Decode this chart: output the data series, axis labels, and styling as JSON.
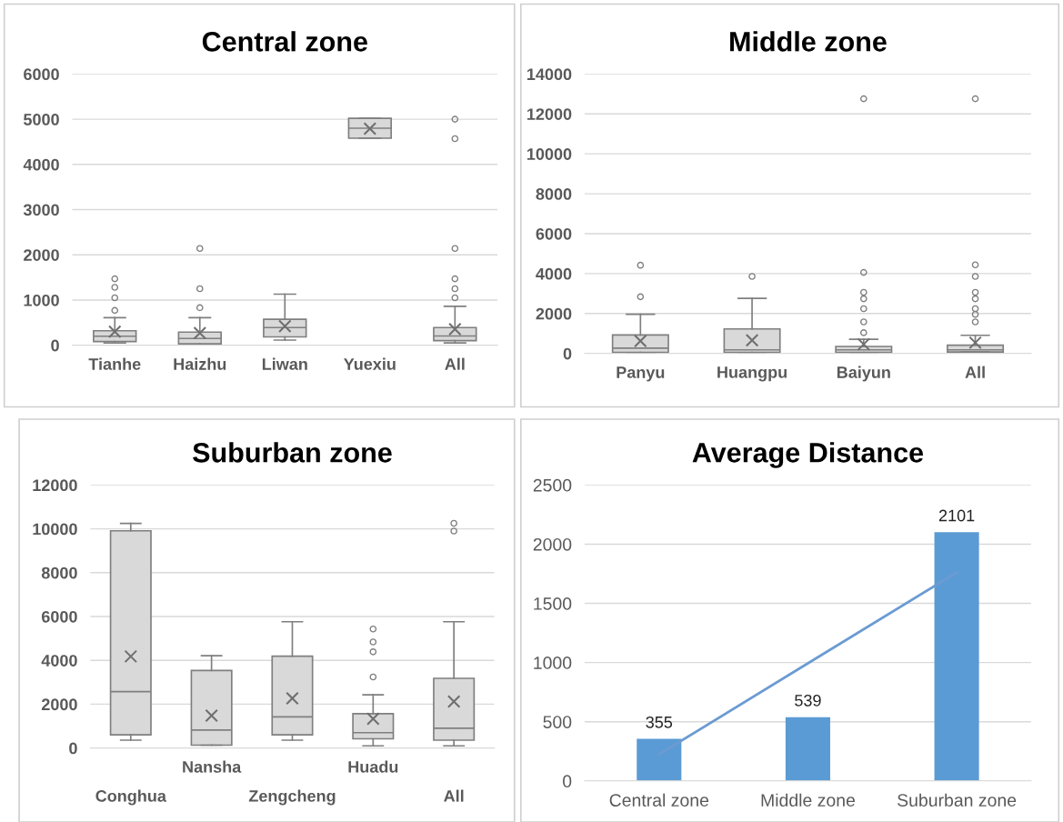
{
  "chart_data": [
    {
      "type": "box",
      "title": "Central zone",
      "categories": [
        "Tianhe",
        "Haizhu",
        "Liwan",
        "Yuexiu",
        "All"
      ],
      "ylim": [
        0,
        6000
      ],
      "yticks": [
        0,
        1000,
        2000,
        3000,
        4000,
        5000,
        6000
      ],
      "grid": "y",
      "series": [
        {
          "color": "#d9d9d9",
          "boxes": [
            {
              "low": 50,
              "q1": 80,
              "median": 200,
              "q3": 320,
              "high": 610,
              "mean": 300,
              "outliers": [
                770,
                1050,
                1280,
                1470
              ]
            },
            {
              "low": 0,
              "q1": 30,
              "median": 150,
              "q3": 290,
              "high": 610,
              "mean": 270,
              "outliers": [
                830,
                1250,
                2140
              ]
            },
            {
              "low": 115,
              "q1": 185,
              "median": 390,
              "q3": 575,
              "high": 1130,
              "mean": 420
            },
            {
              "low": 4580,
              "q1": 4580,
              "median": 4800,
              "q3": 5020,
              "high": 5020,
              "mean": 4790
            },
            {
              "low": 50,
              "q1": 100,
              "median": 205,
              "q3": 390,
              "high": 860,
              "mean": 355,
              "outliers": [
                1050,
                1250,
                1470,
                2140,
                4570,
                5000
              ]
            }
          ]
        }
      ]
    },
    {
      "type": "box",
      "title": "Middle zone",
      "categories": [
        "Panyu",
        "Huangpu",
        "Baiyun",
        "All"
      ],
      "ylim": [
        0,
        14000
      ],
      "yticks": [
        0,
        2000,
        4000,
        6000,
        8000,
        10000,
        12000,
        14000
      ],
      "grid": "y",
      "series": [
        {
          "color": "#d9d9d9",
          "boxes": [
            {
              "low": 0,
              "q1": 50,
              "median": 265,
              "q3": 930,
              "high": 1960,
              "mean": 630,
              "outliers": [
                2840,
                4420
              ]
            },
            {
              "low": 0,
              "q1": 50,
              "median": 180,
              "q3": 1230,
              "high": 2760,
              "mean": 660,
              "outliers": [
                3860
              ]
            },
            {
              "low": 0,
              "q1": 50,
              "median": 180,
              "q3": 350,
              "high": 710,
              "mean": 460,
              "outliers": [
                1040,
                1580,
                2240,
                2740,
                3060,
                4060,
                12760
              ]
            },
            {
              "low": 70,
              "q1": 70,
              "median": 180,
              "q3": 415,
              "high": 910,
              "mean": 540,
              "outliers": [
                1580,
                1960,
                2240,
                2740,
                3060,
                3860,
                4440,
                12760
              ]
            }
          ]
        }
      ]
    },
    {
      "type": "box",
      "title": "Suburban zone",
      "categories": [
        "Conghua",
        "Nansha",
        "Zengcheng",
        "Huadu",
        "All"
      ],
      "ylim": [
        0,
        12000
      ],
      "yticks": [
        0,
        2000,
        4000,
        6000,
        8000,
        10000,
        12000
      ],
      "grid": "y",
      "series": [
        {
          "color": "#d9d9d9",
          "boxes": [
            {
              "low": 360,
              "q1": 600,
              "median": 2570,
              "q3": 9910,
              "high": 10250,
              "mean": 4180
            },
            {
              "low": 130,
              "q1": 130,
              "median": 820,
              "q3": 3540,
              "high": 4210,
              "mean": 1480
            },
            {
              "low": 360,
              "q1": 600,
              "median": 1420,
              "q3": 4190,
              "high": 5760,
              "mean": 2270
            },
            {
              "low": 100,
              "q1": 420,
              "median": 700,
              "q3": 1570,
              "high": 2430,
              "mean": 1330,
              "outliers": [
                3240,
                4390,
                4840,
                5430
              ]
            },
            {
              "low": 100,
              "q1": 360,
              "median": 900,
              "q3": 3180,
              "high": 5760,
              "mean": 2120,
              "outliers": [
                9900,
                10250
              ]
            }
          ]
        }
      ]
    },
    {
      "type": "bar",
      "title": "Average Distance",
      "categories": [
        "Central zone",
        "Middle zone",
        "Suburban zone"
      ],
      "ylim": [
        0,
        2500
      ],
      "yticks": [
        0,
        500,
        1000,
        1500,
        2000,
        2500
      ],
      "grid": "y",
      "series": [
        {
          "color": "#5b9bd5",
          "values": [
            355,
            539,
            2101
          ],
          "value_labels": [
            "355",
            "539",
            "2101"
          ]
        },
        {
          "type": "line",
          "color": "#6b9bd2",
          "values": [
            225,
            993,
            1760
          ]
        }
      ]
    }
  ]
}
